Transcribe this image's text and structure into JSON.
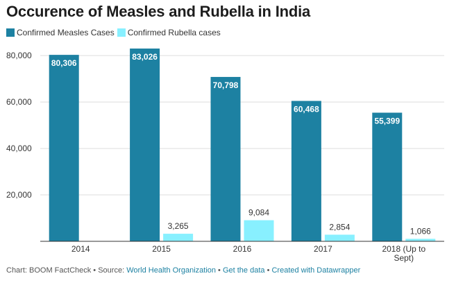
{
  "title": "Occurence of Measles and Rubella in India",
  "colors": {
    "measles": "#1d81a2",
    "rubella": "#88f0ff",
    "axis_text": "#333333",
    "grid": "#dddddd",
    "link": "#1d81a2"
  },
  "chart_data": {
    "type": "bar",
    "title": "Occurence of Measles and Rubella in India",
    "categories": [
      "2014",
      "2015",
      "2016",
      "2017",
      "2018 (Up to Sept)"
    ],
    "category_lines": [
      [
        "2014"
      ],
      [
        "2015"
      ],
      [
        "2016"
      ],
      [
        "2017"
      ],
      [
        "2018 (Up to",
        "Sept)"
      ]
    ],
    "series": [
      {
        "name": "Confirmed Measles Cases",
        "color": "#1d81a2",
        "values": [
          80306,
          83026,
          70798,
          60468,
          55399
        ],
        "labels": [
          "80,306",
          "83,026",
          "70,798",
          "60,468",
          "55,399"
        ]
      },
      {
        "name": "Confirmed Rubella cases",
        "color": "#88f0ff",
        "values": [
          null,
          3265,
          9084,
          2854,
          1066
        ],
        "labels": [
          "",
          "3,265",
          "9,084",
          "2,854",
          "1,066"
        ]
      }
    ],
    "yticks": [
      20000,
      40000,
      60000,
      80000
    ],
    "ytick_labels": [
      "20,000",
      "40,000",
      "60,000",
      "80,000"
    ],
    "ylim": [
      0,
      83026
    ],
    "xlabel": "",
    "ylabel": "",
    "grid": true,
    "legend": "top-left"
  },
  "footer": {
    "prefix": "Chart: BOOM FactCheck • Source: ",
    "source": "World Health Organization",
    "sep1": " • ",
    "get_data": "Get the data",
    "sep2": " • ",
    "created": "Created with Datawrapper"
  }
}
